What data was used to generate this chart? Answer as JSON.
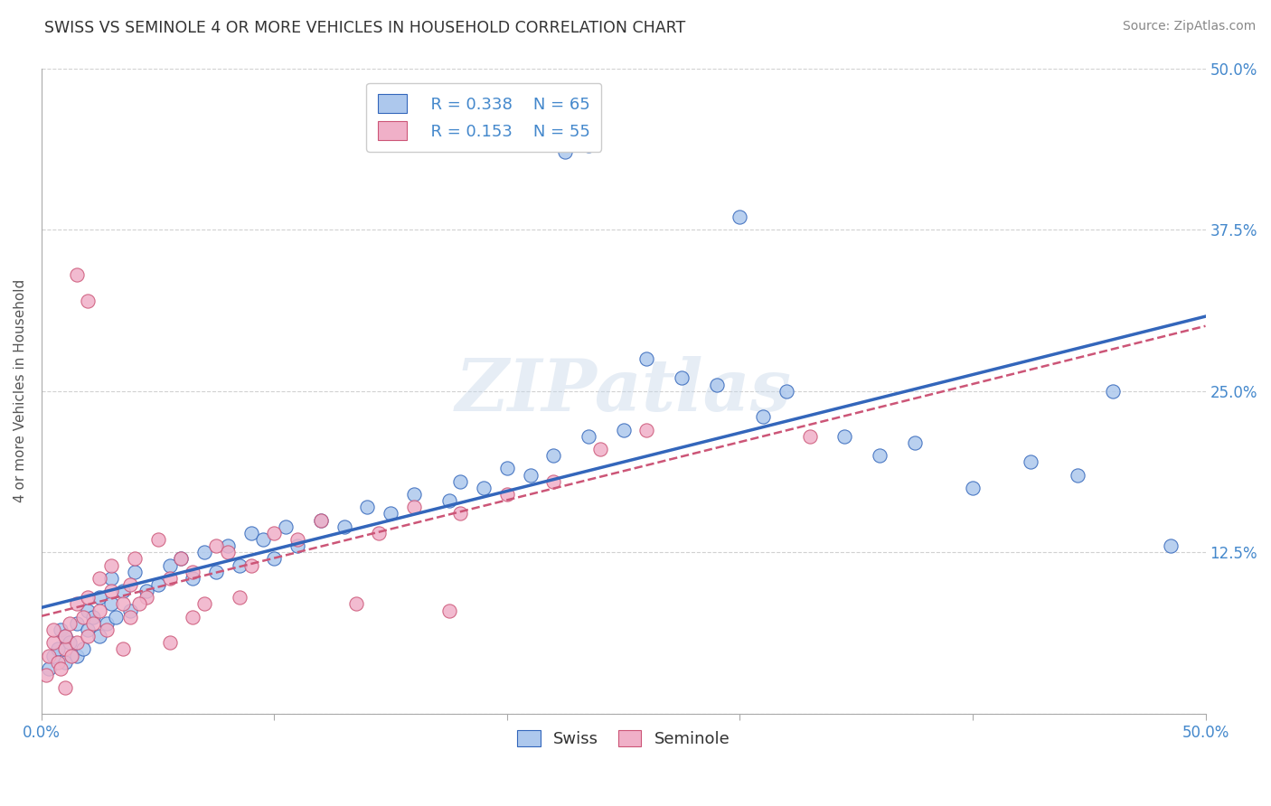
{
  "title": "SWISS VS SEMINOLE 4 OR MORE VEHICLES IN HOUSEHOLD CORRELATION CHART",
  "source": "Source: ZipAtlas.com",
  "ylabel": "4 or more Vehicles in Household",
  "legend_swiss": {
    "R": "0.338",
    "N": "65"
  },
  "legend_seminole": {
    "R": "0.153",
    "N": "55"
  },
  "xlim": [
    0.0,
    50.0
  ],
  "ylim": [
    0.0,
    50.0
  ],
  "swiss_color": "#adc8ed",
  "seminole_color": "#f0b0c8",
  "swiss_line_color": "#3366bb",
  "seminole_line_color": "#cc5577",
  "background_color": "#ffffff",
  "watermark": "ZIPatlas",
  "swiss_points": [
    [
      0.3,
      3.5
    ],
    [
      0.5,
      4.5
    ],
    [
      0.7,
      5.0
    ],
    [
      0.8,
      6.5
    ],
    [
      1.0,
      4.0
    ],
    [
      1.0,
      6.0
    ],
    [
      1.2,
      5.5
    ],
    [
      1.5,
      7.0
    ],
    [
      1.5,
      4.5
    ],
    [
      1.8,
      5.0
    ],
    [
      2.0,
      6.5
    ],
    [
      2.0,
      8.0
    ],
    [
      2.2,
      7.5
    ],
    [
      2.5,
      6.0
    ],
    [
      2.5,
      9.0
    ],
    [
      2.8,
      7.0
    ],
    [
      3.0,
      8.5
    ],
    [
      3.0,
      10.5
    ],
    [
      3.2,
      7.5
    ],
    [
      3.5,
      9.5
    ],
    [
      3.8,
      8.0
    ],
    [
      4.0,
      11.0
    ],
    [
      4.5,
      9.5
    ],
    [
      5.0,
      10.0
    ],
    [
      5.5,
      11.5
    ],
    [
      6.0,
      12.0
    ],
    [
      6.5,
      10.5
    ],
    [
      7.0,
      12.5
    ],
    [
      7.5,
      11.0
    ],
    [
      8.0,
      13.0
    ],
    [
      8.5,
      11.5
    ],
    [
      9.0,
      14.0
    ],
    [
      9.5,
      13.5
    ],
    [
      10.0,
      12.0
    ],
    [
      10.5,
      14.5
    ],
    [
      11.0,
      13.0
    ],
    [
      12.0,
      15.0
    ],
    [
      13.0,
      14.5
    ],
    [
      14.0,
      16.0
    ],
    [
      15.0,
      15.5
    ],
    [
      16.0,
      17.0
    ],
    [
      17.5,
      16.5
    ],
    [
      18.0,
      18.0
    ],
    [
      19.0,
      17.5
    ],
    [
      20.0,
      19.0
    ],
    [
      21.0,
      18.5
    ],
    [
      22.0,
      20.0
    ],
    [
      23.5,
      21.5
    ],
    [
      25.0,
      22.0
    ],
    [
      26.0,
      27.5
    ],
    [
      27.5,
      26.0
    ],
    [
      29.0,
      25.5
    ],
    [
      30.0,
      38.5
    ],
    [
      31.0,
      23.0
    ],
    [
      32.0,
      25.0
    ],
    [
      34.5,
      21.5
    ],
    [
      36.0,
      20.0
    ],
    [
      37.5,
      21.0
    ],
    [
      40.0,
      17.5
    ],
    [
      42.5,
      19.5
    ],
    [
      44.5,
      18.5
    ],
    [
      22.5,
      43.5
    ],
    [
      23.5,
      44.0
    ],
    [
      46.0,
      25.0
    ],
    [
      48.5,
      13.0
    ]
  ],
  "seminole_points": [
    [
      0.2,
      3.0
    ],
    [
      0.3,
      4.5
    ],
    [
      0.5,
      5.5
    ],
    [
      0.5,
      6.5
    ],
    [
      0.7,
      4.0
    ],
    [
      0.8,
      3.5
    ],
    [
      1.0,
      5.0
    ],
    [
      1.0,
      6.0
    ],
    [
      1.2,
      7.0
    ],
    [
      1.3,
      4.5
    ],
    [
      1.5,
      5.5
    ],
    [
      1.5,
      8.5
    ],
    [
      1.8,
      7.5
    ],
    [
      2.0,
      6.0
    ],
    [
      2.0,
      9.0
    ],
    [
      2.2,
      7.0
    ],
    [
      2.5,
      8.0
    ],
    [
      2.5,
      10.5
    ],
    [
      2.8,
      6.5
    ],
    [
      3.0,
      9.5
    ],
    [
      3.0,
      11.5
    ],
    [
      3.5,
      8.5
    ],
    [
      3.8,
      10.0
    ],
    [
      4.0,
      12.0
    ],
    [
      4.5,
      9.0
    ],
    [
      5.0,
      13.5
    ],
    [
      5.5,
      10.5
    ],
    [
      6.0,
      12.0
    ],
    [
      6.5,
      11.0
    ],
    [
      7.0,
      8.5
    ],
    [
      7.5,
      13.0
    ],
    [
      8.0,
      12.5
    ],
    [
      9.0,
      11.5
    ],
    [
      10.0,
      14.0
    ],
    [
      11.0,
      13.5
    ],
    [
      12.0,
      15.0
    ],
    [
      13.5,
      8.5
    ],
    [
      14.5,
      14.0
    ],
    [
      16.0,
      16.0
    ],
    [
      17.5,
      8.0
    ],
    [
      18.0,
      15.5
    ],
    [
      20.0,
      17.0
    ],
    [
      22.0,
      18.0
    ],
    [
      24.0,
      20.5
    ],
    [
      26.0,
      22.0
    ],
    [
      1.5,
      34.0
    ],
    [
      2.0,
      32.0
    ],
    [
      3.5,
      5.0
    ],
    [
      3.8,
      7.5
    ],
    [
      4.2,
      8.5
    ],
    [
      5.5,
      5.5
    ],
    [
      6.5,
      7.5
    ],
    [
      8.5,
      9.0
    ],
    [
      33.0,
      21.5
    ],
    [
      1.0,
      2.0
    ]
  ]
}
